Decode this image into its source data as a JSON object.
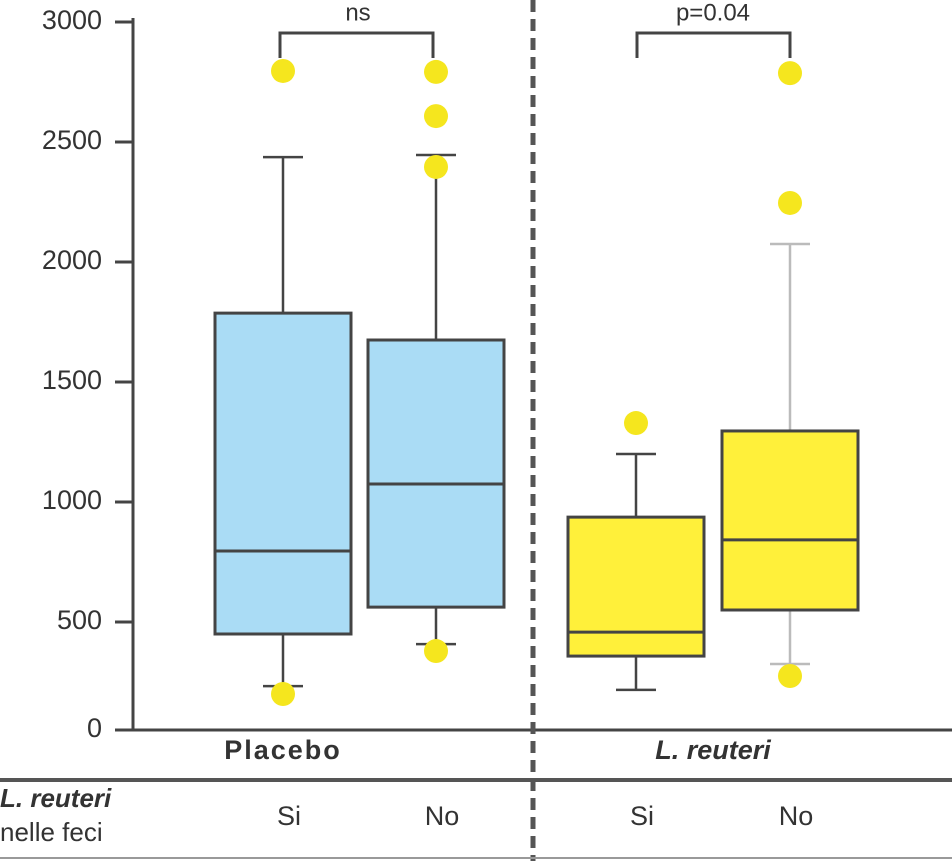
{
  "chart_data": {
    "type": "box",
    "ylim": [
      0,
      3000
    ],
    "yticks": [
      0,
      500,
      1000,
      1500,
      2000,
      2500,
      3000
    ],
    "groups": [
      "Placebo",
      "L. reuteri"
    ],
    "subgroups": [
      "Si",
      "No",
      "Si",
      "No"
    ],
    "row_label": [
      "L. reuteri",
      "nelle feci"
    ],
    "annotations": [
      "ns",
      "p=0.04"
    ],
    "boxes": [
      {
        "color": "#aadcf5",
        "whisker_low": 233,
        "q1": 450,
        "median": 796,
        "q3": 1787,
        "whisker_high": 2437,
        "outliers": [
          2796,
          200
        ]
      },
      {
        "color": "#aadcf5",
        "whisker_low": 408,
        "q1": 562,
        "median": 1075,
        "q3": 1675,
        "whisker_high": 2446,
        "outliers": [
          2792,
          2608,
          2396,
          379
        ]
      },
      {
        "color": "#fff03a",
        "whisker_low": 217,
        "q1": 358,
        "median": 458,
        "q3": 937,
        "whisker_high": 1200,
        "outliers": [
          1329
        ]
      },
      {
        "color": "#fff03a",
        "whisker_low": 325,
        "q1": 550,
        "median": 842,
        "q3": 1296,
        "whisker_high": 2075,
        "outliers": [
          2787,
          2246,
          275
        ]
      }
    ],
    "outlier_color": "#f5e61e"
  }
}
